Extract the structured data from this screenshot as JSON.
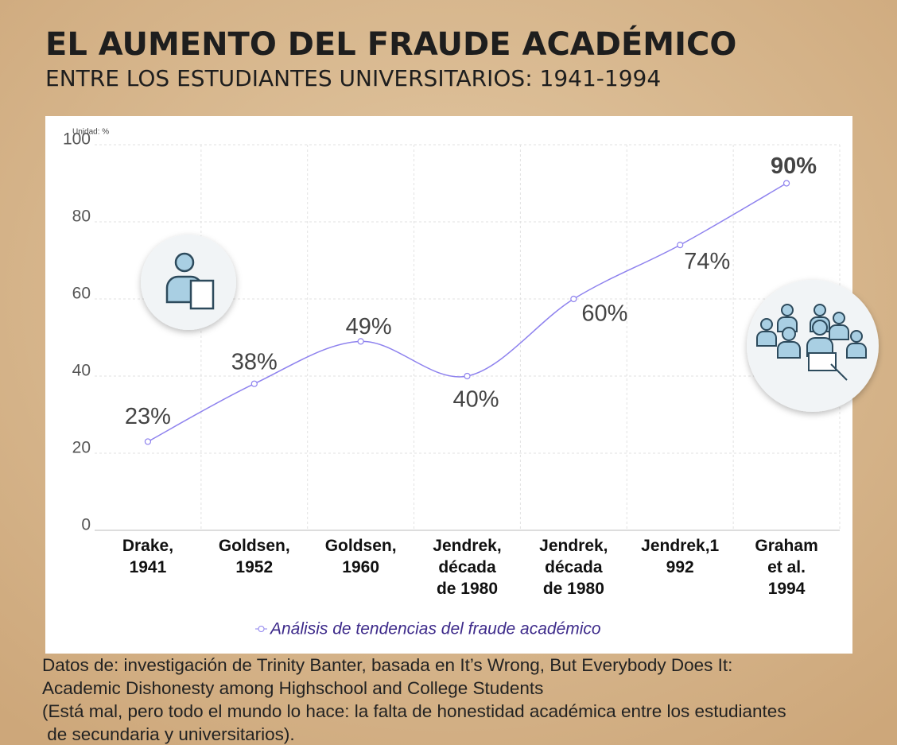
{
  "chart_data": {
    "type": "line",
    "title": "EL AUMENTO DEL FRAUDE ACADÉMICO",
    "subtitle": "ENTRE LOS ESTUDIANTES UNIVERSITARIOS: 1941-1994",
    "unit_label": "Unidad: %",
    "categories": [
      "Drake, 1941",
      "Goldsen, 1952",
      "Goldsen, 1960",
      "Jendrek, década de 1980",
      "Jendrek, década de 1980",
      "Jendrek,1992",
      "Graham et al. 1994"
    ],
    "series": [
      {
        "name": "Análisis de tendencias del fraude académico",
        "color": "#8e82ee",
        "values": [
          23,
          38,
          49,
          40,
          60,
          74,
          90
        ],
        "value_labels": [
          "23%",
          "38%",
          "49%",
          "40%",
          "60%",
          "74%",
          "90%"
        ]
      }
    ],
    "ylim": [
      0,
      100
    ],
    "yticks": [
      0,
      20,
      40,
      60,
      80,
      100
    ],
    "grid": true,
    "source_lines": [
      "Datos de: investigación de Trinity Banter, basada en It’s Wrong, But Everybody Does It:",
      "Academic Dishonesty among Highschool and College Students",
      "(Está mal, pero todo el mundo lo hace: la falta de honestidad académica entre los estudiantes",
      " de secundaria y universitarios)."
    ]
  }
}
